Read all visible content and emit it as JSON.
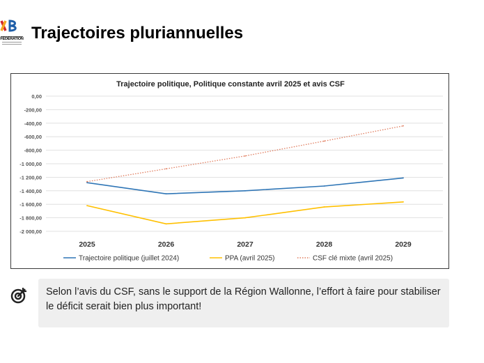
{
  "header": {
    "title": "Trajectoires pluriannuelles",
    "logo_caption": "FÉDÉRATION"
  },
  "chart_data": {
    "type": "line",
    "title": "Trajectoire politique, Politique constante avril 2025 et avis CSF",
    "categories": [
      "2025",
      "2026",
      "2027",
      "2028",
      "2029"
    ],
    "y_ticks": [
      "0,00",
      "-200,00",
      "-400,00",
      "-600,00",
      "-800,00",
      "-1 000,00",
      "-1 200,00",
      "-1 400,00",
      "-1 600,00",
      "-1 800,00",
      "-2 000,00"
    ],
    "ylim": [
      -2000,
      0
    ],
    "grid": true,
    "legend_position": "bottom",
    "series": [
      {
        "name": "Trajectoire politique (juillet 2024)",
        "color": "#2e75b6",
        "style": "solid",
        "values": [
          -1280,
          -1445,
          -1400,
          -1330,
          -1210
        ]
      },
      {
        "name": "PPA (avril 2025)",
        "color": "#ffc000",
        "style": "solid",
        "values": [
          -1620,
          -1890,
          -1800,
          -1640,
          -1565
        ]
      },
      {
        "name": "CSF clé mixte (avril 2025)",
        "color": "#e07b5c",
        "style": "dotted",
        "values": [
          -1265,
          -1075,
          -885,
          -665,
          -440
        ]
      }
    ]
  },
  "note": {
    "icon": "target-icon",
    "text": "Selon l’avis du CSF, sans le support de la Région Wallonne, l’effort à faire pour stabiliser le déficit serait bien plus important!"
  }
}
